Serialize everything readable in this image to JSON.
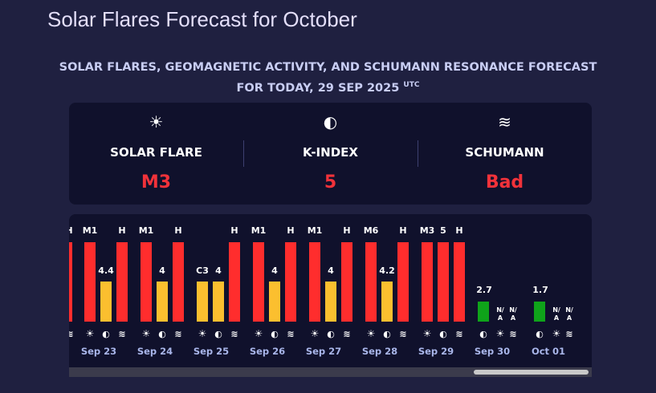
{
  "page": {
    "title": "Solar Flares Forecast for October",
    "subhead_line1": "SOLAR FLARES, GEOMAGNETIC ACTIVITY, AND SCHUMANN RESONANCE FORECAST",
    "subhead_line2": "FOR TODAY, 29 SEP 2025",
    "subhead_sup": "UTC"
  },
  "summary": [
    {
      "icon": "sun-icon",
      "glyph": "☀",
      "label": "SOLAR FLARE",
      "value": "M3"
    },
    {
      "icon": "magnet-icon",
      "glyph": "◐",
      "label": "K-INDEX",
      "value": "5"
    },
    {
      "icon": "waves-icon",
      "glyph": "≋",
      "label": "SCHUMANN",
      "value": "Bad"
    }
  ],
  "colors": {
    "red": "#ff2d2d",
    "yellow": "#fbbf2f",
    "green": "#0fa31a",
    "accent_red": "#f1323a"
  },
  "chart_data": {
    "type": "bar",
    "note_kindex_scale": [
      0,
      9
    ],
    "partial_leading_labels": [
      "H"
    ],
    "days": [
      {
        "date": "Sep 23",
        "flare": "M1",
        "kindex": 4.4,
        "schumann": "H"
      },
      {
        "date": "Sep 24",
        "flare": "M1",
        "kindex": 4,
        "schumann": "H"
      },
      {
        "date": "Sep 25",
        "flare": "C3",
        "kindex": 4,
        "schumann": "H"
      },
      {
        "date": "Sep 26",
        "flare": "M1",
        "kindex": 4,
        "schumann": "H"
      },
      {
        "date": "Sep 27",
        "flare": "M1",
        "kindex": 4,
        "schumann": "H"
      },
      {
        "date": "Sep 28",
        "flare": "M6",
        "kindex": 4.2,
        "schumann": "H"
      },
      {
        "date": "Sep 29",
        "flare": "M3",
        "kindex": 5,
        "schumann": "H"
      },
      {
        "date": "Sep 30",
        "flare": "",
        "kindex": 2.7,
        "schumann": "N/A"
      },
      {
        "date": "Oct 01",
        "flare": "",
        "kindex": 1.7,
        "schumann": "N/A"
      }
    ]
  }
}
